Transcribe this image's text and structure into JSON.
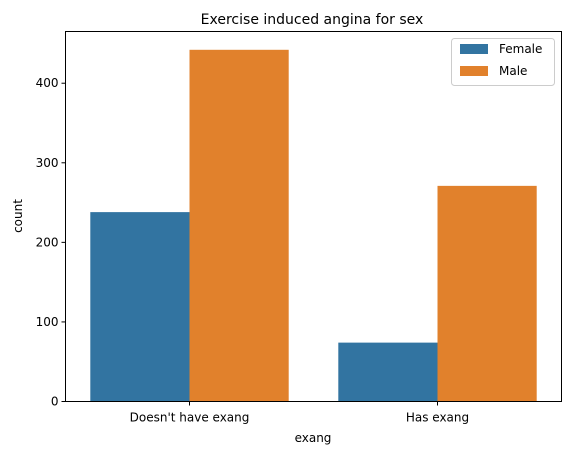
{
  "chart_data": {
    "type": "bar",
    "title": "Exercise induced angina for sex",
    "xlabel": "exang",
    "ylabel": "count",
    "categories": [
      "Doesn't have exang",
      "Has exang"
    ],
    "series": [
      {
        "name": "Female",
        "values": [
          238,
          74
        ],
        "color": "#3274a1"
      },
      {
        "name": "Male",
        "values": [
          442,
          271
        ],
        "color": "#e1812c"
      }
    ],
    "ylim": [
      0,
      465
    ],
    "yticks": [
      0,
      100,
      200,
      300,
      400
    ],
    "legend_position": "top-right",
    "grid": false
  }
}
